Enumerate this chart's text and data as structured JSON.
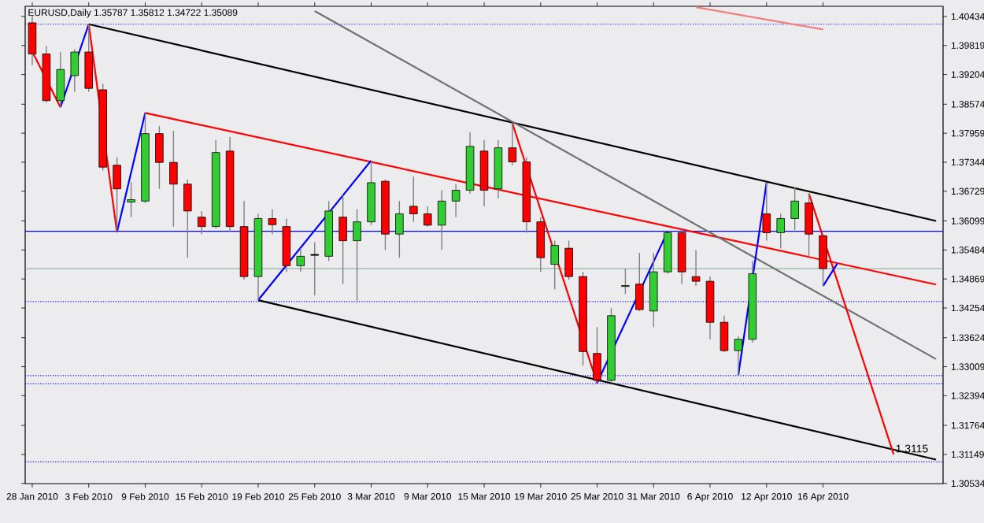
{
  "chart_data": {
    "type": "candlestick",
    "title": "EURUSD,Daily  1.35787 1.35812 1.34722 1.35089",
    "categories": [
      "28 Jan 2010",
      null,
      null,
      null,
      "3 Feb 2010",
      null,
      null,
      null,
      "9 Feb 2010",
      null,
      null,
      null,
      "15 Feb 2010",
      null,
      null,
      null,
      "19 Feb 2010",
      null,
      null,
      null,
      "25 Feb 2010",
      null,
      null,
      null,
      "3 Mar 2010",
      null,
      null,
      null,
      "9 Mar 2010",
      null,
      null,
      null,
      "15 Mar 2010",
      null,
      null,
      null,
      "19 Mar 2010",
      null,
      null,
      null,
      "25 Mar 2010",
      null,
      null,
      null,
      "31 Mar 2010",
      null,
      null,
      null,
      "6 Apr 2010",
      null,
      null,
      null,
      "12 Apr 2010",
      null,
      null,
      null,
      "16 Apr 2010",
      null,
      null,
      null,
      null,
      null,
      null,
      null,
      null
    ],
    "ohlc": [
      [
        1.403,
        1.4045,
        1.394,
        1.3964
      ],
      [
        1.3964,
        1.3981,
        1.3861,
        1.3865
      ],
      [
        1.3865,
        1.3968,
        1.3851,
        1.3931
      ],
      [
        1.3918,
        1.3974,
        1.3884,
        1.3968
      ],
      [
        1.3968,
        1.4027,
        1.3884,
        1.3891
      ],
      [
        1.3888,
        1.3901,
        1.3717,
        1.3724
      ],
      [
        1.3728,
        1.3745,
        1.3586,
        1.3678
      ],
      [
        1.365,
        1.3692,
        1.3618,
        1.3655
      ],
      [
        1.3652,
        1.3839,
        1.3648,
        1.3795
      ],
      [
        1.3795,
        1.3811,
        1.3678,
        1.3734
      ],
      [
        1.3734,
        1.3801,
        1.3598,
        1.3688
      ],
      [
        1.3688,
        1.3698,
        1.3532,
        1.3631
      ],
      [
        1.3618,
        1.3631,
        1.3582,
        1.3598
      ],
      [
        1.3598,
        1.3781,
        1.3595,
        1.3755
      ],
      [
        1.3758,
        1.3788,
        1.3588,
        1.3598
      ],
      [
        1.3598,
        1.3652,
        1.3485,
        1.3492
      ],
      [
        1.3492,
        1.3625,
        1.3442,
        1.3615
      ],
      [
        1.3615,
        1.3635,
        1.3582,
        1.3602
      ],
      [
        1.3598,
        1.3615,
        1.3502,
        1.3515
      ],
      [
        1.3515,
        1.3552,
        1.3502,
        1.3535
      ],
      [
        1.3537,
        1.3565,
        1.3452,
        1.3539
      ],
      [
        1.3535,
        1.3652,
        1.3525,
        1.3631
      ],
      [
        1.3618,
        1.3665,
        1.3476,
        1.3568
      ],
      [
        1.3568,
        1.3635,
        1.3436,
        1.3608
      ],
      [
        1.3608,
        1.3738,
        1.3601,
        1.3691
      ],
      [
        1.3694,
        1.3698,
        1.3548,
        1.3582
      ],
      [
        1.3582,
        1.3652,
        1.3532,
        1.3625
      ],
      [
        1.3641,
        1.3704,
        1.3608,
        1.3625
      ],
      [
        1.3625,
        1.3641,
        1.3598,
        1.3601
      ],
      [
        1.3601,
        1.3675,
        1.3548,
        1.3652
      ],
      [
        1.3652,
        1.3688,
        1.3618,
        1.3675
      ],
      [
        1.3675,
        1.3798,
        1.3668,
        1.3768
      ],
      [
        1.3758,
        1.3781,
        1.3641,
        1.3675
      ],
      [
        1.3678,
        1.3781,
        1.3658,
        1.3765
      ],
      [
        1.3765,
        1.3817,
        1.3728,
        1.3735
      ],
      [
        1.3735,
        1.3745,
        1.3585,
        1.3608
      ],
      [
        1.3608,
        1.3618,
        1.3502,
        1.3532
      ],
      [
        1.3518,
        1.3568,
        1.3465,
        1.3558
      ],
      [
        1.3552,
        1.3568,
        1.3485,
        1.3492
      ],
      [
        1.3492,
        1.3502,
        1.3303,
        1.3333
      ],
      [
        1.3329,
        1.3385,
        1.3266,
        1.3272
      ],
      [
        1.3272,
        1.3425,
        1.3266,
        1.3409
      ],
      [
        1.3471,
        1.3509,
        1.3455,
        1.3473
      ],
      [
        1.3476,
        1.3542,
        1.3419,
        1.3422
      ],
      [
        1.3419,
        1.3542,
        1.3385,
        1.3502
      ],
      [
        1.3502,
        1.3588,
        1.3498,
        1.3585
      ],
      [
        1.3585,
        1.3591,
        1.3476,
        1.3502
      ],
      [
        1.3492,
        1.3548,
        1.3472,
        1.3482
      ],
      [
        1.3482,
        1.3492,
        1.3359,
        1.3395
      ],
      [
        1.3395,
        1.3409,
        1.3332,
        1.3335
      ],
      [
        1.3335,
        1.3365,
        1.3283,
        1.3359
      ],
      [
        1.3359,
        1.3525,
        1.3352,
        1.3498
      ],
      [
        1.3625,
        1.3691,
        1.3568,
        1.3585
      ],
      [
        1.3585,
        1.3625,
        1.3552,
        1.3615
      ],
      [
        1.3615,
        1.3681,
        1.3591,
        1.3652
      ],
      [
        1.3648,
        1.3668,
        1.3535,
        1.3582
      ],
      [
        1.35787,
        1.35812,
        1.34722,
        1.35089
      ],
      null,
      null,
      null,
      null,
      null,
      null,
      null,
      null
    ],
    "colors": [
      "#ff0000",
      "#ff0000",
      "#32cd32",
      "#32cd32",
      "#ff0000",
      "#ff0000",
      "#ff0000",
      "#32cd32",
      "#32cd32",
      "#ff0000",
      "#ff0000",
      "#ff0000",
      "#ff0000",
      "#32cd32",
      "#ff0000",
      "#ff0000",
      "#32cd32",
      "#ff0000",
      "#ff0000",
      "#32cd32",
      "#000000",
      "#32cd32",
      "#ff0000",
      "#32cd32",
      "#32cd32",
      "#ff0000",
      "#32cd32",
      "#ff0000",
      "#ff0000",
      "#32cd32",
      "#32cd32",
      "#32cd32",
      "#ff0000",
      "#32cd32",
      "#ff0000",
      "#ff0000",
      "#ff0000",
      "#32cd32",
      "#ff0000",
      "#ff0000",
      "#ff0000",
      "#32cd32",
      "#32cd32",
      "#ff0000",
      "#32cd32",
      "#32cd32",
      "#ff0000",
      "#ff0000",
      "#ff0000",
      "#ff0000",
      "#32cd32",
      "#32cd32",
      "#ff0000",
      "#32cd32",
      "#32cd32",
      "#ff0000",
      "#ff0000",
      null,
      null,
      null,
      null,
      null,
      null,
      null,
      null
    ],
    "series": [
      {
        "type": "line",
        "color": "#000000",
        "values": [
          null,
          null,
          null,
          null,
          1.4027,
          null,
          null,
          null,
          null,
          null,
          null,
          null,
          null,
          null,
          null,
          null,
          null,
          null,
          null,
          null,
          null,
          null,
          null,
          null,
          null,
          null,
          null,
          null,
          null,
          null,
          null,
          null,
          null,
          null,
          null,
          null,
          null,
          null,
          null,
          null,
          null,
          null,
          null,
          null,
          null,
          null,
          null,
          null,
          null,
          null,
          null,
          null,
          null,
          null,
          null,
          null,
          null,
          null,
          null,
          null,
          null,
          null,
          null,
          null,
          1.361
        ]
      },
      {
        "type": "line",
        "color": "#000000",
        "values": [
          null,
          null,
          null,
          null,
          null,
          null,
          null,
          null,
          null,
          null,
          null,
          null,
          null,
          null,
          null,
          null,
          1.3442,
          null,
          null,
          null,
          null,
          null,
          null,
          null,
          null,
          null,
          null,
          null,
          null,
          null,
          null,
          null,
          null,
          null,
          null,
          null,
          null,
          null,
          null,
          null,
          null,
          null,
          null,
          null,
          null,
          null,
          null,
          null,
          null,
          null,
          null,
          null,
          null,
          null,
          null,
          null,
          null,
          null,
          null,
          null,
          null,
          null,
          null,
          null,
          1.3104
        ]
      },
      {
        "type": "line",
        "color": "#ff0000",
        "values": [
          null,
          null,
          null,
          null,
          null,
          null,
          null,
          null,
          1.3839,
          null,
          null,
          null,
          null,
          null,
          null,
          null,
          null,
          null,
          null,
          null,
          null,
          null,
          null,
          null,
          null,
          null,
          null,
          null,
          null,
          null,
          null,
          null,
          null,
          null,
          null,
          null,
          null,
          null,
          null,
          null,
          null,
          null,
          null,
          null,
          null,
          null,
          null,
          null,
          null,
          null,
          null,
          null,
          null,
          null,
          null,
          null,
          null,
          null,
          null,
          null,
          null,
          null,
          null,
          null,
          1.3475
        ]
      },
      {
        "type": "line",
        "color": "#707070",
        "values": [
          null,
          null,
          null,
          null,
          null,
          null,
          null,
          null,
          null,
          null,
          null,
          null,
          null,
          null,
          null,
          null,
          null,
          null,
          null,
          null,
          1.4055,
          null,
          null,
          null,
          null,
          null,
          null,
          null,
          null,
          null,
          null,
          null,
          null,
          null,
          null,
          null,
          null,
          null,
          null,
          null,
          null,
          null,
          null,
          null,
          null,
          null,
          null,
          null,
          null,
          null,
          null,
          null,
          null,
          null,
          null,
          null,
          null,
          null,
          null,
          null,
          null,
          null,
          null,
          null,
          1.3317
        ]
      },
      {
        "type": "line",
        "color": "#f08080",
        "values": [
          null,
          null,
          null,
          null,
          null,
          null,
          null,
          null,
          null,
          null,
          null,
          null,
          null,
          null,
          null,
          null,
          null,
          null,
          null,
          null,
          null,
          null,
          null,
          null,
          null,
          null,
          null,
          null,
          null,
          null,
          null,
          null,
          null,
          null,
          null,
          null,
          null,
          null,
          null,
          null,
          null,
          null,
          null,
          null,
          null,
          null,
          null,
          1.4063,
          null,
          null,
          null,
          null,
          null,
          null,
          null,
          null,
          1.4016,
          null,
          null,
          null,
          null,
          null,
          null,
          null,
          null
        ]
      },
      {
        "type": "line",
        "color": "#ff0000",
        "values": [
          1.3969,
          null,
          1.3851,
          null,
          null,
          null,
          null,
          null,
          null,
          null,
          null,
          null,
          null,
          null,
          null,
          null,
          null,
          null,
          null,
          null,
          null,
          null,
          null,
          null,
          null,
          null,
          null,
          null,
          null,
          null,
          null,
          null,
          null,
          null,
          null,
          null,
          null,
          null,
          null,
          null,
          null,
          null,
          null,
          null,
          null,
          null,
          null,
          null,
          null,
          null,
          null,
          null,
          null,
          null,
          null,
          null,
          null,
          null,
          null,
          null,
          null,
          null,
          null,
          null,
          null
        ]
      },
      {
        "type": "line",
        "color": "#0000ff",
        "values": [
          null,
          null,
          1.3851,
          null,
          1.4027,
          null,
          null,
          null,
          null,
          null,
          null,
          null,
          null,
          null,
          null,
          null,
          null,
          null,
          null,
          null,
          null,
          null,
          null,
          null,
          null,
          null,
          null,
          null,
          null,
          null,
          null,
          null,
          null,
          null,
          null,
          null,
          null,
          null,
          null,
          null,
          null,
          null,
          null,
          null,
          null,
          null,
          null,
          null,
          null,
          null,
          null,
          null,
          null,
          null,
          null,
          null,
          null,
          null,
          null,
          null,
          null,
          null,
          null,
          null,
          null
        ]
      },
      {
        "type": "line",
        "color": "#ff0000",
        "values": [
          null,
          null,
          null,
          null,
          1.4027,
          null,
          1.3586,
          null,
          null,
          null,
          null,
          null,
          null,
          null,
          null,
          null,
          null,
          null,
          null,
          null,
          null,
          null,
          null,
          null,
          null,
          null,
          null,
          null,
          null,
          null,
          null,
          null,
          null,
          null,
          null,
          null,
          null,
          null,
          null,
          null,
          null,
          null,
          null,
          null,
          null,
          null,
          null,
          null,
          null,
          null,
          null,
          null,
          null,
          null,
          null,
          null,
          null,
          null,
          null,
          null,
          null,
          null,
          null,
          null,
          null
        ]
      },
      {
        "type": "line",
        "color": "#0000ff",
        "values": [
          null,
          null,
          null,
          null,
          null,
          null,
          1.3586,
          null,
          1.3839,
          null,
          null,
          null,
          null,
          null,
          null,
          null,
          null,
          null,
          null,
          null,
          null,
          null,
          null,
          null,
          null,
          null,
          null,
          null,
          null,
          null,
          null,
          null,
          null,
          null,
          null,
          null,
          null,
          null,
          null,
          null,
          null,
          null,
          null,
          null,
          null,
          null,
          null,
          null,
          null,
          null,
          null,
          null,
          null,
          null,
          null,
          null,
          null,
          null,
          null,
          null,
          null,
          null,
          null,
          null,
          null
        ]
      },
      {
        "type": "line",
        "color": "#0000ff",
        "values": [
          null,
          null,
          null,
          null,
          null,
          null,
          null,
          null,
          null,
          null,
          null,
          null,
          null,
          null,
          null,
          null,
          1.3442,
          null,
          null,
          null,
          null,
          null,
          null,
          null,
          1.3738,
          null,
          null,
          null,
          null,
          null,
          null,
          null,
          null,
          null,
          null,
          null,
          null,
          null,
          null,
          null,
          null,
          null,
          null,
          null,
          null,
          null,
          null,
          null,
          null,
          null,
          null,
          null,
          null,
          null,
          null,
          null,
          null,
          null,
          null,
          null,
          null,
          null,
          null,
          null,
          null
        ]
      },
      {
        "type": "line",
        "color": "#ff0000",
        "values": [
          null,
          null,
          null,
          null,
          null,
          null,
          null,
          null,
          null,
          null,
          null,
          null,
          null,
          null,
          null,
          null,
          null,
          null,
          null,
          null,
          null,
          null,
          null,
          null,
          null,
          null,
          null,
          null,
          null,
          null,
          null,
          null,
          null,
          null,
          1.3817,
          null,
          null,
          null,
          null,
          null,
          1.3266,
          null,
          null,
          null,
          null,
          null,
          null,
          null,
          null,
          null,
          null,
          null,
          null,
          null,
          null,
          null,
          null,
          null,
          null,
          null,
          null,
          null,
          null,
          null,
          null
        ]
      },
      {
        "type": "line",
        "color": "#0000ff",
        "values": [
          null,
          null,
          null,
          null,
          null,
          null,
          null,
          null,
          null,
          null,
          null,
          null,
          null,
          null,
          null,
          null,
          null,
          null,
          null,
          null,
          null,
          null,
          null,
          null,
          null,
          null,
          null,
          null,
          null,
          null,
          null,
          null,
          null,
          null,
          null,
          null,
          null,
          null,
          null,
          null,
          1.3266,
          null,
          null,
          null,
          null,
          1.3588,
          null,
          null,
          null,
          null,
          null,
          null,
          null,
          null,
          null,
          null,
          null,
          null,
          null,
          null,
          null,
          null,
          null,
          null,
          null
        ]
      },
      {
        "type": "line",
        "color": "#0000ff",
        "values": [
          null,
          null,
          null,
          null,
          null,
          null,
          null,
          null,
          null,
          null,
          null,
          null,
          null,
          null,
          null,
          null,
          null,
          null,
          null,
          null,
          null,
          null,
          null,
          null,
          null,
          null,
          null,
          null,
          null,
          null,
          null,
          null,
          null,
          null,
          null,
          null,
          null,
          null,
          null,
          null,
          null,
          null,
          null,
          null,
          null,
          null,
          null,
          null,
          null,
          null,
          1.3283,
          null,
          1.3691,
          null,
          null,
          null,
          null,
          null,
          null,
          null,
          null,
          null,
          null,
          null,
          null
        ]
      },
      {
        "type": "line",
        "color": "#ff0000",
        "values": [
          null,
          null,
          null,
          null,
          null,
          null,
          null,
          null,
          null,
          null,
          null,
          null,
          null,
          null,
          null,
          null,
          null,
          null,
          null,
          null,
          null,
          null,
          null,
          null,
          null,
          null,
          null,
          null,
          null,
          null,
          null,
          null,
          null,
          null,
          null,
          null,
          null,
          null,
          null,
          null,
          null,
          null,
          null,
          null,
          null,
          null,
          null,
          null,
          null,
          null,
          null,
          null,
          null,
          null,
          null,
          1.3668,
          null,
          null,
          null,
          null,
          null,
          1.3115,
          null,
          null,
          null
        ]
      },
      {
        "type": "line",
        "color": "#0000ff",
        "values": [
          null,
          null,
          null,
          null,
          null,
          null,
          null,
          null,
          null,
          null,
          null,
          null,
          null,
          null,
          null,
          null,
          null,
          null,
          null,
          null,
          null,
          null,
          null,
          null,
          null,
          null,
          null,
          null,
          null,
          null,
          null,
          null,
          null,
          null,
          null,
          null,
          null,
          null,
          null,
          null,
          null,
          null,
          null,
          null,
          null,
          null,
          null,
          null,
          null,
          null,
          null,
          null,
          null,
          null,
          null,
          null,
          1.3472,
          1.3519,
          null,
          null,
          null,
          null,
          null,
          null,
          null
        ]
      }
    ],
    "ref_lines": [
      {
        "axis": "y",
        "value": 1.4027,
        "color": "#0000ff",
        "line_style": "dotted"
      },
      {
        "axis": "y",
        "value": 1.3588,
        "color": "#0000ff",
        "line_style": "solid"
      },
      {
        "axis": "y",
        "value": 1.35089,
        "color": "#7fa88f",
        "line_style": "solid"
      },
      {
        "axis": "y",
        "value": 1.3439,
        "color": "#0000ff",
        "line_style": "dotted"
      },
      {
        "axis": "y",
        "value": 1.3282,
        "color": "#0000ff",
        "line_style": "dotted"
      },
      {
        "axis": "y",
        "value": 1.3265,
        "color": "#0000ff",
        "line_style": "dotted"
      },
      {
        "axis": "y",
        "value": 1.3099,
        "color": "#0000ff",
        "line_style": "dotted"
      }
    ],
    "annotations": [
      {
        "text": "1.3115",
        "y": 1.3115
      }
    ],
    "ylim": [
      1.3053,
      1.4065
    ],
    "yticks": [
      1.40434,
      1.39819,
      1.39204,
      1.38574,
      1.37959,
      1.37344,
      1.36729,
      1.36099,
      1.35484,
      1.34869,
      1.34254,
      1.33624,
      1.33009,
      1.32394,
      1.31764,
      1.31149,
      1.30534
    ]
  }
}
